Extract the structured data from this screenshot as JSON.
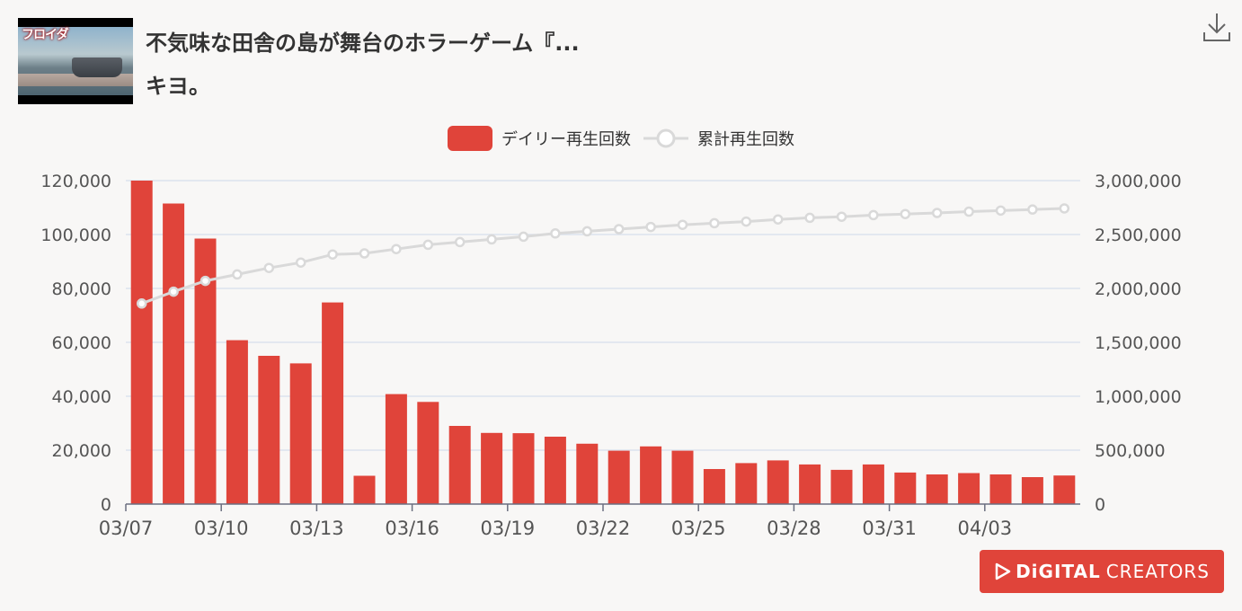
{
  "header": {
    "title": "不気味な田舎の島が舞台のホラーゲーム『...",
    "channel": "キヨ。",
    "thumbnail_label": "フロイダ"
  },
  "toolbar": {
    "download_icon": "download-icon"
  },
  "colors": {
    "bar": "#e0443a",
    "line": "#d9d9d9",
    "grid": "#dce3ee",
    "axis": "#555555",
    "brand_bg": "#e0443a"
  },
  "brand": {
    "word1": "DiGITAL",
    "word2": "CREATORS"
  },
  "chart_data": {
    "type": "bar",
    "legend_position": "top-center",
    "grid": true,
    "x": [
      "03/07",
      "03/08",
      "03/09",
      "03/10",
      "03/11",
      "03/12",
      "03/13",
      "03/14",
      "03/15",
      "03/16",
      "03/17",
      "03/18",
      "03/19",
      "03/20",
      "03/21",
      "03/22",
      "03/23",
      "03/24",
      "03/25",
      "03/26",
      "03/27",
      "03/28",
      "03/29",
      "03/30",
      "03/31",
      "04/01",
      "04/02",
      "04/03",
      "04/04",
      "04/05"
    ],
    "x_tick_labels": [
      "03/07",
      "03/10",
      "03/13",
      "03/16",
      "03/19",
      "03/22",
      "03/25",
      "03/28",
      "03/31",
      "04/03"
    ],
    "y_left": {
      "ylim": [
        0,
        120000
      ],
      "ticks": [
        "0",
        "20,000",
        "40,000",
        "60,000",
        "80,000",
        "100,000",
        "120,000"
      ]
    },
    "y_right": {
      "ylim": [
        0,
        3000000
      ],
      "ticks": [
        "0",
        "500,000",
        "1,000,000",
        "1,500,000",
        "2,000,000",
        "2,500,000",
        "3,000,000"
      ]
    },
    "series": [
      {
        "name": "デイリー再生回数",
        "type": "bar",
        "axis": "left",
        "values": [
          120000,
          111500,
          98500,
          60800,
          55000,
          52200,
          74800,
          10500,
          40800,
          37900,
          29000,
          26400,
          26300,
          25000,
          22400,
          19800,
          21400,
          19800,
          13000,
          15200,
          16200,
          14700,
          12700,
          14700,
          11700,
          11000,
          11500,
          11000,
          10000,
          10600
        ]
      },
      {
        "name": "累計再生回数",
        "type": "line",
        "axis": "right",
        "values": [
          1860000,
          1970000,
          2070000,
          2130000,
          2190000,
          2240000,
          2315000,
          2325000,
          2365000,
          2405000,
          2430000,
          2455000,
          2480000,
          2510000,
          2530000,
          2550000,
          2570000,
          2590000,
          2605000,
          2620000,
          2640000,
          2655000,
          2665000,
          2680000,
          2690000,
          2700000,
          2712000,
          2722000,
          2732000,
          2742000
        ]
      }
    ]
  }
}
